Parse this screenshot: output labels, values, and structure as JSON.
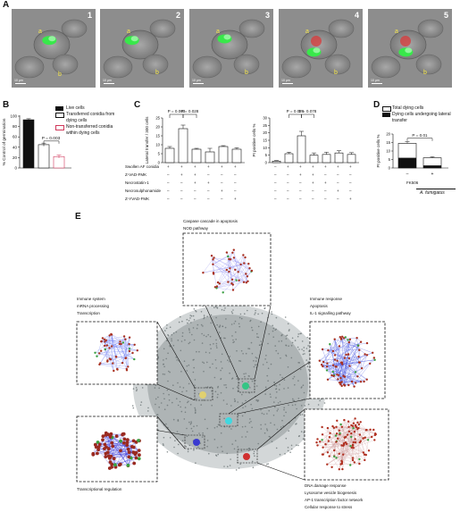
{
  "panelA": {
    "letter": "A",
    "images": [
      {
        "number": "1",
        "label_a": "a",
        "label_b": "b",
        "scale": "10 μm"
      },
      {
        "number": "2",
        "label_a": "a",
        "label_b": "b",
        "scale": "10 μm"
      },
      {
        "number": "3",
        "label_a": "a",
        "label_b": "b",
        "scale": "10 μm"
      },
      {
        "number": "4",
        "label_a": "a",
        "label_b": "b",
        "scale": "10 μm"
      },
      {
        "number": "5",
        "label_a": "a",
        "label_b": "b",
        "scale": "10 μm"
      }
    ]
  },
  "panelB": {
    "letter": "B",
    "legend": [
      "Live cells",
      "Transferred conidia from dying cells",
      "Non-transferred conidia within dying cells"
    ],
    "pvalue": "P = 0.003"
  },
  "panelC": {
    "letter": "C",
    "conditions": [
      "Swollen AF conidia",
      "Z-VAD-FMK",
      "Necrostatin-1",
      "Necrosulphonamide",
      "Z-YVAD-FMK"
    ],
    "signs": [
      [
        "+",
        "+",
        "+",
        "+",
        "+",
        "+"
      ],
      [
        "–",
        "+",
        "+",
        "–",
        "–",
        "–"
      ],
      [
        "–",
        "–",
        "+",
        "+",
        "–",
        "–"
      ],
      [
        "–",
        "–",
        "–",
        "–",
        "+",
        "–"
      ],
      [
        "–",
        "–",
        "–",
        "–",
        "–",
        "+"
      ]
    ],
    "signs_right": [
      [
        "–",
        "+",
        "+",
        "+",
        "+",
        "+",
        "+"
      ],
      [
        "–",
        "–",
        "+",
        "+",
        "–",
        "–",
        "–"
      ],
      [
        "–",
        "–",
        "–",
        "+",
        "+",
        "–",
        "–"
      ],
      [
        "–",
        "–",
        "–",
        "–",
        "–",
        "+",
        "–"
      ],
      [
        "–",
        "–",
        "–",
        "–",
        "–",
        "–",
        "+"
      ]
    ],
    "left_pvalues": [
      "P = 0.003",
      "P = 0.028"
    ],
    "right_pvalues": [
      "P = 0.028",
      "P = 0.078"
    ]
  },
  "panelD": {
    "letter": "D",
    "legend": [
      "Total dying cells",
      "Dying cells undergoing lateral transfer"
    ],
    "pvalue": "P = 0.01",
    "fk_label": "FK506",
    "species": "A. fumigatus",
    "signs": [
      "–",
      "+"
    ]
  },
  "panelE": {
    "letter": "E",
    "top_terms": [
      "Caspase cascade in apoptosis",
      "NOD pathway"
    ],
    "left_terms": [
      "Immune system",
      "mRNA processing",
      "Transcription"
    ],
    "right_terms": [
      "Immune response",
      "Apoptosis",
      "IL-1 signalling pathway"
    ],
    "bottom_left_terms": [
      "Transcriptional regulation"
    ],
    "bottom_right_terms": [
      "DNA damage response",
      "Lysosome vesicle biogenesis",
      "AP-1 transcription factor network",
      "Cellular response to stress"
    ]
  },
  "chart_data": [
    {
      "type": "bar",
      "panel": "B",
      "categories": [
        "Live cells",
        "Transferred conidia from dying cells",
        "Non-transferred conidia within dying cells"
      ],
      "values": [
        93,
        45,
        22
      ],
      "errors": [
        2,
        3,
        3
      ],
      "colors": [
        "#111111",
        "#ffffff",
        "#ffffff"
      ],
      "edge_colors": [
        "#111111",
        "#111111",
        "#d0375a"
      ],
      "ylabel": "% Control of germination",
      "ylim": [
        0,
        100
      ],
      "yticks": [
        0,
        20,
        40,
        60,
        80,
        100
      ]
    },
    {
      "type": "bar",
      "panel": "C-left",
      "values": [
        8,
        19,
        7.5,
        6,
        9,
        7.5
      ],
      "errors": [
        1,
        2,
        0.5,
        2,
        0.5,
        0.8
      ],
      "ylabel": "Lateral transfer / 300 cells",
      "ylim": [
        0,
        25
      ],
      "yticks": [
        0,
        5,
        10,
        15,
        20,
        25
      ]
    },
    {
      "type": "bar",
      "panel": "C-right",
      "values": [
        1,
        6,
        18,
        5,
        5.5,
        6.5,
        5.5
      ],
      "errors": [
        0.4,
        1,
        3,
        1.5,
        1.5,
        1.5,
        1.2
      ],
      "ylabel": "PI positive cells %",
      "ylim": [
        0,
        30
      ],
      "yticks": [
        0,
        5,
        10,
        15,
        20,
        25,
        30
      ]
    },
    {
      "type": "bar",
      "panel": "D",
      "series": [
        {
          "name": "Total dying cells",
          "values": [
            14.5,
            6
          ]
        },
        {
          "name": "Dying cells undergoing lateral transfer",
          "values": [
            6,
            1.5
          ]
        }
      ],
      "errors": [
        1,
        0.6
      ],
      "ylabel": "PI positive cells %",
      "ylim": [
        0,
        20
      ],
      "yticks": [
        0,
        5,
        10,
        15,
        20
      ]
    }
  ]
}
